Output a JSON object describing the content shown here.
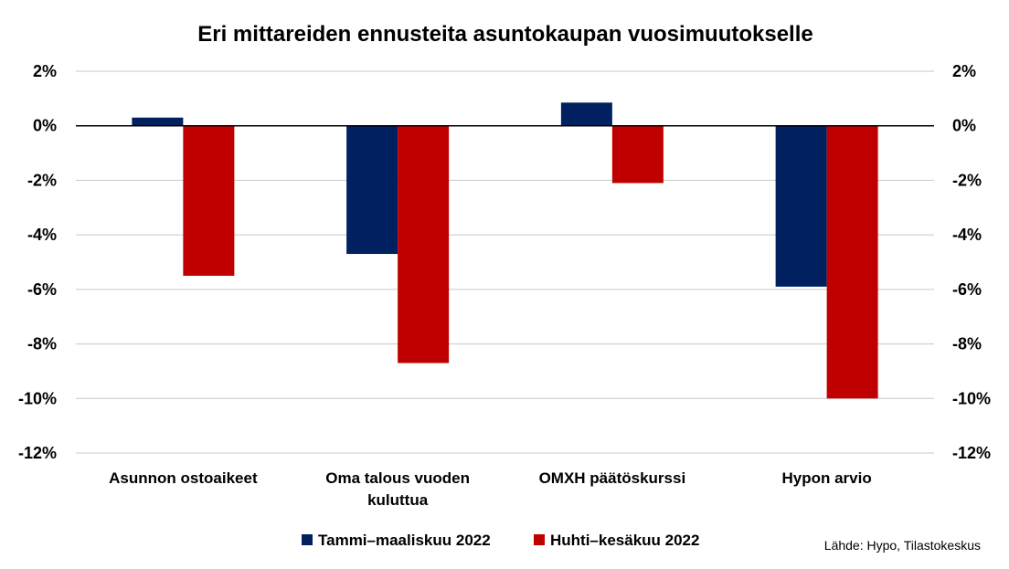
{
  "chart_data": {
    "type": "bar",
    "title": "Eri mittareiden ennusteita asuntokaupan vuosimuutokselle",
    "categories": [
      [
        "Asunnon ostoaikeet"
      ],
      [
        "Oma talous vuoden",
        "kuluttua"
      ],
      [
        "OMXH päätöskurssi"
      ],
      [
        "Hypon arvio"
      ]
    ],
    "series": [
      {
        "name": "Tammi–maaliskuu 2022",
        "color": "#002060",
        "values": [
          0.3,
          -4.7,
          0.85,
          -5.9
        ]
      },
      {
        "name": "Huhti–kesäkuu 2022",
        "color": "#C00000",
        "values": [
          -5.5,
          -8.7,
          -2.1,
          -10.0
        ]
      }
    ],
    "ylim": [
      -12,
      2
    ],
    "yticks": [
      2,
      0,
      -2,
      -4,
      -6,
      -8,
      -10,
      -12
    ],
    "ytick_labels": [
      "2%",
      "0%",
      "-2%",
      "-4%",
      "-6%",
      "-8%",
      "-10%",
      "-12%"
    ],
    "secondary_yticks": true,
    "grid": true,
    "legend_position": "bottom",
    "source_note": "Lähde: Hypo, Tilastokeskus"
  }
}
